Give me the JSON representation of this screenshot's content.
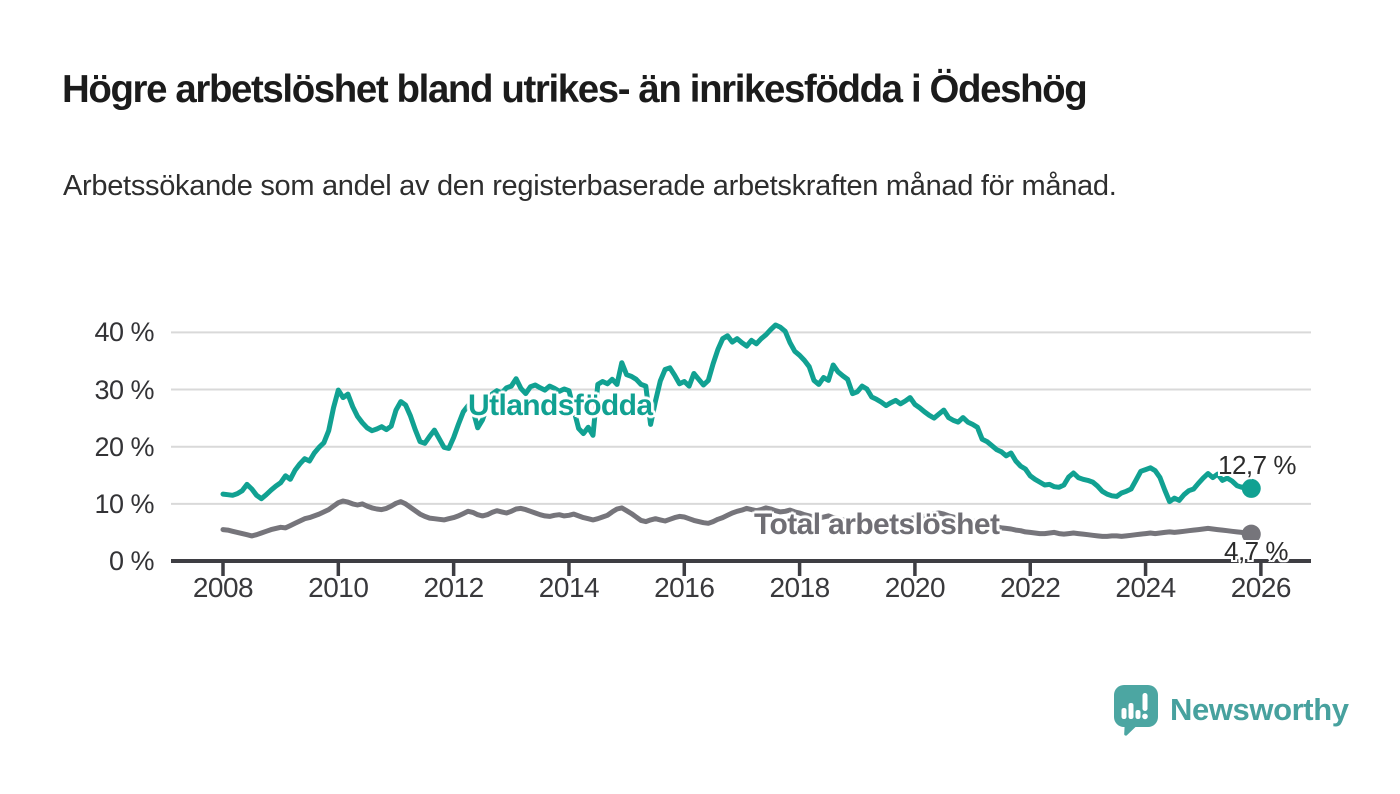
{
  "header": {
    "title": "Högre arbetslöshet bland utrikes- än inrikesfödda i Ödeshög",
    "subtitle": "Arbetssökande som andel av den registerbaserade arbetskraften månad för månad."
  },
  "chart_data": {
    "type": "line",
    "title": "Högre arbetslöshet bland utrikes- än inrikesfödda i Ödeshög",
    "xlabel": "",
    "ylabel": "",
    "x_unit": "year",
    "x_start_year": 2008,
    "points_per_year": 12,
    "xlim": [
      2007.1,
      2026.9
    ],
    "ylim": [
      0,
      43
    ],
    "grid": "horizontal",
    "legend_position": "inline-labels",
    "y_ticks": [
      {
        "value": 0,
        "label": "0 %"
      },
      {
        "value": 10,
        "label": "10 %"
      },
      {
        "value": 20,
        "label": "20 %"
      },
      {
        "value": 30,
        "label": "30 %"
      },
      {
        "value": 40,
        "label": "40 %"
      }
    ],
    "x_ticks": [
      {
        "value": 2008,
        "label": "2008"
      },
      {
        "value": 2010,
        "label": "2010"
      },
      {
        "value": 2012,
        "label": "2012"
      },
      {
        "value": 2014,
        "label": "2014"
      },
      {
        "value": 2016,
        "label": "2016"
      },
      {
        "value": 2018,
        "label": "2018"
      },
      {
        "value": 2020,
        "label": "2020"
      },
      {
        "value": 2022,
        "label": "2022"
      },
      {
        "value": 2024,
        "label": "2024"
      },
      {
        "value": 2026,
        "label": "2026"
      }
    ],
    "series": [
      {
        "name": "Utlandsfödda",
        "color": "#11A192",
        "end_label": "12,7 %",
        "end_value": 12.7,
        "values": [
          11.7,
          11.6,
          11.5,
          11.8,
          12.3,
          13.4,
          12.6,
          11.5,
          10.9,
          11.6,
          12.4,
          13.1,
          13.7,
          14.9,
          14.3,
          15.9,
          17.0,
          17.9,
          17.5,
          18.9,
          19.9,
          20.7,
          22.8,
          26.8,
          29.9,
          28.6,
          29.2,
          27.0,
          25.3,
          24.2,
          23.3,
          22.8,
          23.1,
          23.5,
          23.0,
          23.6,
          26.4,
          27.9,
          27.3,
          25.4,
          23.0,
          20.9,
          20.6,
          21.8,
          22.9,
          21.4,
          19.9,
          19.7,
          21.6,
          23.9,
          26.1,
          27.2,
          26.4,
          23.3,
          24.7,
          27.1,
          29.2,
          29.8,
          29.4,
          30.3,
          30.6,
          31.9,
          30.2,
          29.3,
          30.5,
          30.8,
          30.3,
          29.9,
          30.6,
          30.2,
          29.7,
          30.1,
          29.8,
          26.5,
          23.2,
          22.3,
          23.4,
          22.0,
          30.9,
          31.4,
          31.0,
          31.8,
          30.9,
          34.7,
          32.6,
          32.3,
          31.8,
          30.9,
          30.6,
          23.9,
          28.0,
          31.5,
          33.5,
          33.8,
          32.5,
          31.0,
          31.4,
          30.6,
          32.8,
          31.8,
          30.8,
          31.6,
          34.5,
          37.0,
          38.9,
          39.4,
          38.3,
          38.9,
          38.2,
          37.6,
          38.6,
          38.0,
          38.9,
          39.6,
          40.5,
          41.3,
          40.9,
          40.2,
          38.2,
          36.7,
          36.0,
          35.1,
          34.0,
          31.6,
          30.9,
          32.1,
          31.6,
          34.3,
          33.1,
          32.4,
          31.8,
          29.3,
          29.6,
          30.6,
          30.1,
          28.7,
          28.3,
          27.8,
          27.2,
          27.7,
          28.1,
          27.5,
          28.0,
          28.6,
          27.4,
          26.8,
          26.1,
          25.5,
          25.0,
          25.7,
          26.4,
          25.1,
          24.6,
          24.3,
          25.1,
          24.3,
          23.9,
          23.4,
          21.3,
          20.9,
          20.2,
          19.5,
          19.1,
          18.4,
          18.9,
          17.5,
          16.6,
          16.1,
          14.9,
          14.3,
          13.8,
          13.3,
          13.4,
          13.0,
          12.9,
          13.3,
          14.7,
          15.4,
          14.6,
          14.3,
          14.1,
          13.8,
          13.1,
          12.2,
          11.7,
          11.4,
          11.3,
          11.9,
          12.2,
          12.6,
          14.1,
          15.7,
          16.0,
          16.3,
          15.8,
          14.6,
          12.4,
          10.4,
          11.0,
          10.6,
          11.6,
          12.3,
          12.6,
          13.6,
          14.5,
          15.3,
          14.6,
          15.2,
          14.1,
          14.5,
          14.0,
          13.2,
          12.9,
          13.1,
          12.7
        ]
      },
      {
        "name": "Total arbetslöshet",
        "color": "#76757B",
        "end_label": "4,7 %",
        "end_value": 4.7,
        "values": [
          5.5,
          5.4,
          5.2,
          5.0,
          4.8,
          4.6,
          4.4,
          4.6,
          4.9,
          5.2,
          5.5,
          5.7,
          5.9,
          5.8,
          6.2,
          6.6,
          7.0,
          7.4,
          7.6,
          7.9,
          8.2,
          8.6,
          9.0,
          9.6,
          10.2,
          10.5,
          10.3,
          10.0,
          9.8,
          10.0,
          9.6,
          9.3,
          9.1,
          9.0,
          9.2,
          9.6,
          10.1,
          10.4,
          10.0,
          9.4,
          8.8,
          8.2,
          7.8,
          7.5,
          7.4,
          7.3,
          7.2,
          7.4,
          7.6,
          7.9,
          8.3,
          8.7,
          8.5,
          8.1,
          7.9,
          8.1,
          8.5,
          8.8,
          8.6,
          8.4,
          8.7,
          9.1,
          9.2,
          9.0,
          8.7,
          8.4,
          8.1,
          7.9,
          7.8,
          8.0,
          8.1,
          7.9,
          8.0,
          8.2,
          7.9,
          7.6,
          7.4,
          7.2,
          7.4,
          7.7,
          8.0,
          8.6,
          9.1,
          9.3,
          8.8,
          8.3,
          7.7,
          7.1,
          6.9,
          7.2,
          7.4,
          7.2,
          7.0,
          7.3,
          7.6,
          7.8,
          7.7,
          7.4,
          7.1,
          6.9,
          6.7,
          6.6,
          6.9,
          7.3,
          7.6,
          8.0,
          8.4,
          8.7,
          8.9,
          9.2,
          9.0,
          8.8,
          9.0,
          9.3,
          9.1,
          8.8,
          8.6,
          8.7,
          8.9,
          8.6,
          8.4,
          8.1,
          7.9,
          7.7,
          7.5,
          7.7,
          7.9,
          7.6,
          7.4,
          7.2,
          7.0,
          7.2,
          7.4,
          7.2,
          7.0,
          6.9,
          7.0,
          7.1,
          7.3,
          7.1,
          6.9,
          7.0,
          7.2,
          7.4,
          7.6,
          7.5,
          7.8,
          8.1,
          8.3,
          8.4,
          8.2,
          7.9,
          7.7,
          7.5,
          7.3,
          7.1,
          7.0,
          6.8,
          6.6,
          6.4,
          6.2,
          6.0,
          5.8,
          5.7,
          5.6,
          5.4,
          5.3,
          5.1,
          5.0,
          4.9,
          4.8,
          4.8,
          4.9,
          5.0,
          4.8,
          4.7,
          4.8,
          4.9,
          4.8,
          4.7,
          4.6,
          4.5,
          4.4,
          4.3,
          4.3,
          4.4,
          4.4,
          4.3,
          4.4,
          4.5,
          4.6,
          4.7,
          4.8,
          4.9,
          4.8,
          4.9,
          5.0,
          5.1,
          5.0,
          5.1,
          5.2,
          5.3,
          5.4,
          5.5,
          5.6,
          5.7,
          5.6,
          5.5,
          5.4,
          5.3,
          5.2,
          5.1,
          5.0,
          4.8,
          4.7
        ]
      }
    ],
    "colors": {
      "grid": "#d9d9d9",
      "axis": "#3E3E43",
      "tick_text": "#39393c"
    }
  },
  "footer": {
    "brand": "Newsworthy",
    "brand_color": "#47A19E",
    "logo_color": "#4CA6A2"
  }
}
